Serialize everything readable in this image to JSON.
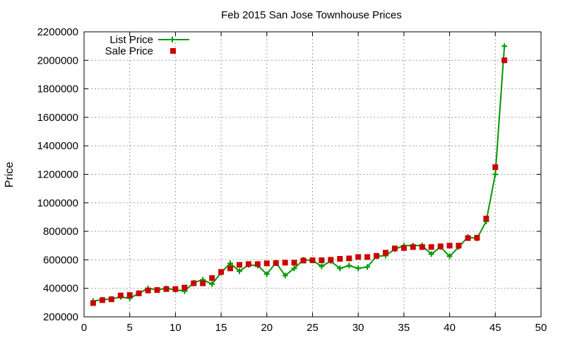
{
  "chart_data": {
    "type": "line",
    "title": "Feb 2015 San Jose Townhouse Prices",
    "xlabel": "",
    "ylabel": "Price",
    "xlim": [
      0,
      50
    ],
    "ylim": [
      200000,
      2200000
    ],
    "x_ticks": [
      0,
      5,
      10,
      15,
      20,
      25,
      30,
      35,
      40,
      45,
      50
    ],
    "y_ticks": [
      200000,
      400000,
      600000,
      800000,
      1000000,
      1200000,
      1400000,
      1600000,
      1800000,
      2000000,
      2200000
    ],
    "grid": true,
    "legend_position": "top-left",
    "series": [
      {
        "name": "List Price",
        "style": "line-with-plus-markers",
        "color": "#009900",
        "x": [
          1,
          2,
          3,
          4,
          5,
          6,
          7,
          8,
          9,
          10,
          11,
          12,
          13,
          14,
          15,
          16,
          17,
          18,
          19,
          20,
          21,
          22,
          23,
          24,
          25,
          26,
          27,
          28,
          29,
          30,
          31,
          32,
          33,
          34,
          35,
          36,
          37,
          38,
          39,
          40,
          41,
          42,
          43,
          44,
          45,
          46
        ],
        "values": [
          310000,
          320000,
          325000,
          340000,
          330000,
          365000,
          400000,
          390000,
          400000,
          390000,
          380000,
          440000,
          460000,
          430000,
          510000,
          575000,
          520000,
          565000,
          560000,
          500000,
          580000,
          490000,
          540000,
          600000,
          595000,
          555000,
          590000,
          540000,
          560000,
          540000,
          550000,
          625000,
          630000,
          675000,
          700000,
          700000,
          700000,
          640000,
          690000,
          625000,
          690000,
          760000,
          750000,
          870000,
          1200000,
          2100000
        ]
      },
      {
        "name": "Sale Price",
        "style": "square-markers",
        "color": "#cc0000",
        "x": [
          1,
          2,
          3,
          4,
          5,
          6,
          7,
          8,
          9,
          10,
          11,
          12,
          13,
          14,
          15,
          16,
          17,
          18,
          19,
          20,
          21,
          22,
          23,
          24,
          25,
          26,
          27,
          28,
          29,
          30,
          31,
          32,
          33,
          34,
          35,
          36,
          37,
          38,
          39,
          40,
          41,
          42,
          43,
          44,
          45,
          46
        ],
        "values": [
          297000,
          317000,
          323000,
          350000,
          353000,
          365000,
          385000,
          388000,
          395000,
          395000,
          405000,
          435000,
          435000,
          472000,
          515000,
          540000,
          565000,
          570000,
          570000,
          575000,
          577000,
          580000,
          580000,
          595000,
          597000,
          597000,
          600000,
          607000,
          610000,
          620000,
          620000,
          628000,
          650000,
          680000,
          683000,
          690000,
          690000,
          690000,
          695000,
          700000,
          700000,
          753000,
          755000,
          890000,
          1250000,
          2000000
        ]
      }
    ]
  }
}
